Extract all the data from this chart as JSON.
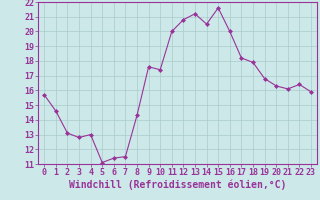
{
  "x": [
    0,
    1,
    2,
    3,
    4,
    5,
    6,
    7,
    8,
    9,
    10,
    11,
    12,
    13,
    14,
    15,
    16,
    17,
    18,
    19,
    20,
    21,
    22,
    23
  ],
  "y": [
    15.7,
    14.6,
    13.1,
    12.8,
    13.0,
    11.1,
    11.4,
    11.5,
    14.3,
    17.6,
    17.4,
    20.0,
    20.8,
    21.2,
    20.5,
    21.6,
    20.0,
    18.2,
    17.9,
    16.8,
    16.3,
    16.1,
    16.4,
    15.9
  ],
  "line_color": "#993399",
  "marker": "D",
  "marker_size": 2.0,
  "bg_color": "#cce8e8",
  "grid_color": "#aacccc",
  "xlabel": "Windchill (Refroidissement éolien,°C)",
  "xlabel_fontsize": 7.0,
  "ylim": [
    11,
    22
  ],
  "xlim": [
    -0.5,
    23.5
  ],
  "yticks": [
    11,
    12,
    13,
    14,
    15,
    16,
    17,
    18,
    19,
    20,
    21,
    22
  ],
  "xticks": [
    0,
    1,
    2,
    3,
    4,
    5,
    6,
    7,
    8,
    9,
    10,
    11,
    12,
    13,
    14,
    15,
    16,
    17,
    18,
    19,
    20,
    21,
    22,
    23
  ],
  "tick_fontsize": 6.0,
  "tick_color": "#993399",
  "label_color": "#993399",
  "spine_color": "#993399"
}
